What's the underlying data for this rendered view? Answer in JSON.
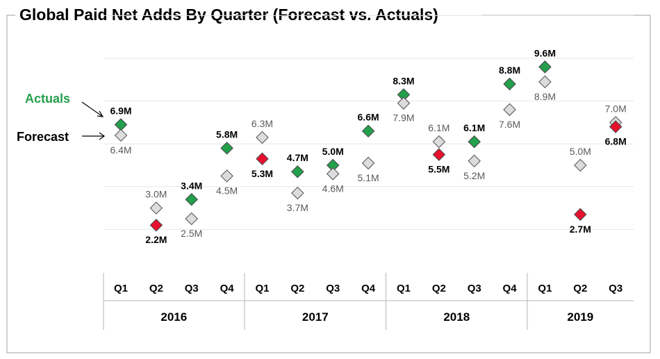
{
  "chart_data": {
    "type": "scatter",
    "title": "Global Paid Net Adds By Quarter (Forecast vs. Actuals)",
    "years": [
      {
        "label": "2016",
        "quarters": [
          "Q1",
          "Q2",
          "Q3",
          "Q4"
        ]
      },
      {
        "label": "2017",
        "quarters": [
          "Q1",
          "Q2",
          "Q3",
          "Q4"
        ]
      },
      {
        "label": "2018",
        "quarters": [
          "Q1",
          "Q2",
          "Q3",
          "Q4"
        ]
      },
      {
        "label": "2019",
        "quarters": [
          "Q1",
          "Q2",
          "Q3"
        ]
      }
    ],
    "ylim": [
      0,
      12
    ],
    "grid": true,
    "legend": {
      "actual_label": "Actuals",
      "forecast_label": "Forecast",
      "placement": "left"
    },
    "colors": {
      "beat": "#22a04b",
      "miss": "#e8112d",
      "forecast": "#dcdcdc"
    },
    "series": [
      {
        "name": "Actuals",
        "values": [
          6.9,
          2.2,
          3.4,
          5.8,
          5.3,
          4.7,
          5.0,
          6.6,
          8.3,
          5.5,
          6.1,
          8.8,
          9.6,
          2.7,
          6.8
        ],
        "labels": [
          "6.9M",
          "2.2M",
          "3.4M",
          "5.8M",
          "5.3M",
          "4.7M",
          "5.0M",
          "6.6M",
          "8.3M",
          "5.5M",
          "6.1M",
          "8.8M",
          "9.6M",
          "2.7M",
          "6.8M"
        ]
      },
      {
        "name": "Forecast",
        "values": [
          6.4,
          3.0,
          2.5,
          4.5,
          6.3,
          3.7,
          4.6,
          5.1,
          7.9,
          6.1,
          5.2,
          7.6,
          8.9,
          5.0,
          7.0
        ],
        "labels": [
          "6.4M",
          "3.0M",
          "2.5M",
          "4.5M",
          "6.3M",
          "3.7M",
          "4.6M",
          "5.1M",
          "7.9M",
          "6.1M",
          "5.2M",
          "7.6M",
          "8.9M",
          "5.0M",
          "7.0M"
        ]
      }
    ]
  }
}
